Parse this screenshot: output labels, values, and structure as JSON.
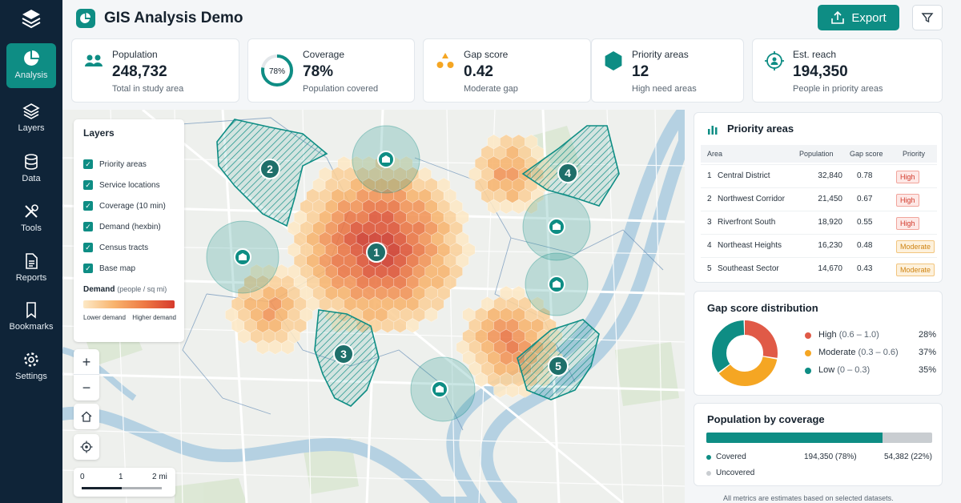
{
  "app": {
    "title": "GIS Analysis Demo",
    "export_label": "Export"
  },
  "sidebar": {
    "items": [
      {
        "label": "Analysis",
        "icon": "pie-chart-icon",
        "active": true
      },
      {
        "label": "Layers",
        "icon": "layers-icon"
      },
      {
        "label": "Data",
        "icon": "database-icon"
      },
      {
        "label": "Tools",
        "icon": "tools-icon"
      },
      {
        "label": "Reports",
        "icon": "report-icon"
      },
      {
        "label": "Bookmarks",
        "icon": "bookmark-icon"
      },
      {
        "label": "Settings",
        "icon": "gear-icon"
      }
    ]
  },
  "kpis": {
    "population": {
      "label": "Population",
      "value": "248,732",
      "sub": "Total in study area"
    },
    "coverage": {
      "label": "Coverage",
      "value": "78%",
      "ring": "78%",
      "sub": "Population covered",
      "fraction": 0.78
    },
    "gap": {
      "label": "Gap score",
      "value": "0.42",
      "sub": "Moderate gap"
    },
    "priority": {
      "label": "Priority areas",
      "value": "12",
      "sub": "High need areas"
    },
    "reach": {
      "label": "Est. reach",
      "value": "194,350",
      "sub": "People in priority areas"
    }
  },
  "layers": {
    "title": "Layers",
    "items": [
      "Priority areas",
      "Service locations",
      "Coverage (10 min)",
      "Demand (hexbin)",
      "Census tracts",
      "Base map"
    ],
    "legend_title": "Demand",
    "legend_unit": "(people / sq mi)",
    "legend_low": "Lower demand",
    "legend_high": "Higher demand"
  },
  "map": {
    "zoom_in": "+",
    "zoom_out": "−",
    "scale": {
      "t0": "0",
      "t1": "1",
      "t2": "2 mi"
    },
    "areas": [
      "1",
      "2",
      "3",
      "4",
      "5"
    ]
  },
  "priority": {
    "title": "Priority areas",
    "headers": {
      "area": "Area",
      "population": "Population",
      "gap": "Gap score",
      "priority": "Priority"
    },
    "rows": [
      {
        "n": "1",
        "area": "Central District",
        "population": "32,840",
        "gap": "0.78",
        "priority": "High"
      },
      {
        "n": "2",
        "area": "Northwest Corridor",
        "population": "21,450",
        "gap": "0.67",
        "priority": "High"
      },
      {
        "n": "3",
        "area": "Riverfront South",
        "population": "18,920",
        "gap": "0.55",
        "priority": "High"
      },
      {
        "n": "4",
        "area": "Northeast Heights",
        "population": "16,230",
        "gap": "0.48",
        "priority": "Moderate"
      },
      {
        "n": "5",
        "area": "Southeast Sector",
        "population": "14,670",
        "gap": "0.43",
        "priority": "Moderate"
      }
    ]
  },
  "gap_dist": {
    "title": "Gap score distribution",
    "items": [
      {
        "name": "High",
        "range": "(0.6 – 1.0)",
        "pct": "28%",
        "value": 28,
        "color": "#e05a47"
      },
      {
        "name": "Moderate",
        "range": "(0.3 – 0.6)",
        "pct": "37%",
        "value": 37,
        "color": "#f5a623"
      },
      {
        "name": "Low",
        "range": "(0 – 0.3)",
        "pct": "35%",
        "value": 35,
        "color": "#0e8d84"
      }
    ]
  },
  "coverage": {
    "title": "Population by coverage",
    "covered_fraction": 0.78,
    "covered": {
      "label": "Covered",
      "value": "194,350 (78%)",
      "color": "#0e8d84"
    },
    "uncovered": {
      "label": "Uncovered",
      "value": "54,382 (22%)",
      "color": "#c9cdd1"
    }
  },
  "footnote": "All metrics are estimates based on selected datasets."
}
